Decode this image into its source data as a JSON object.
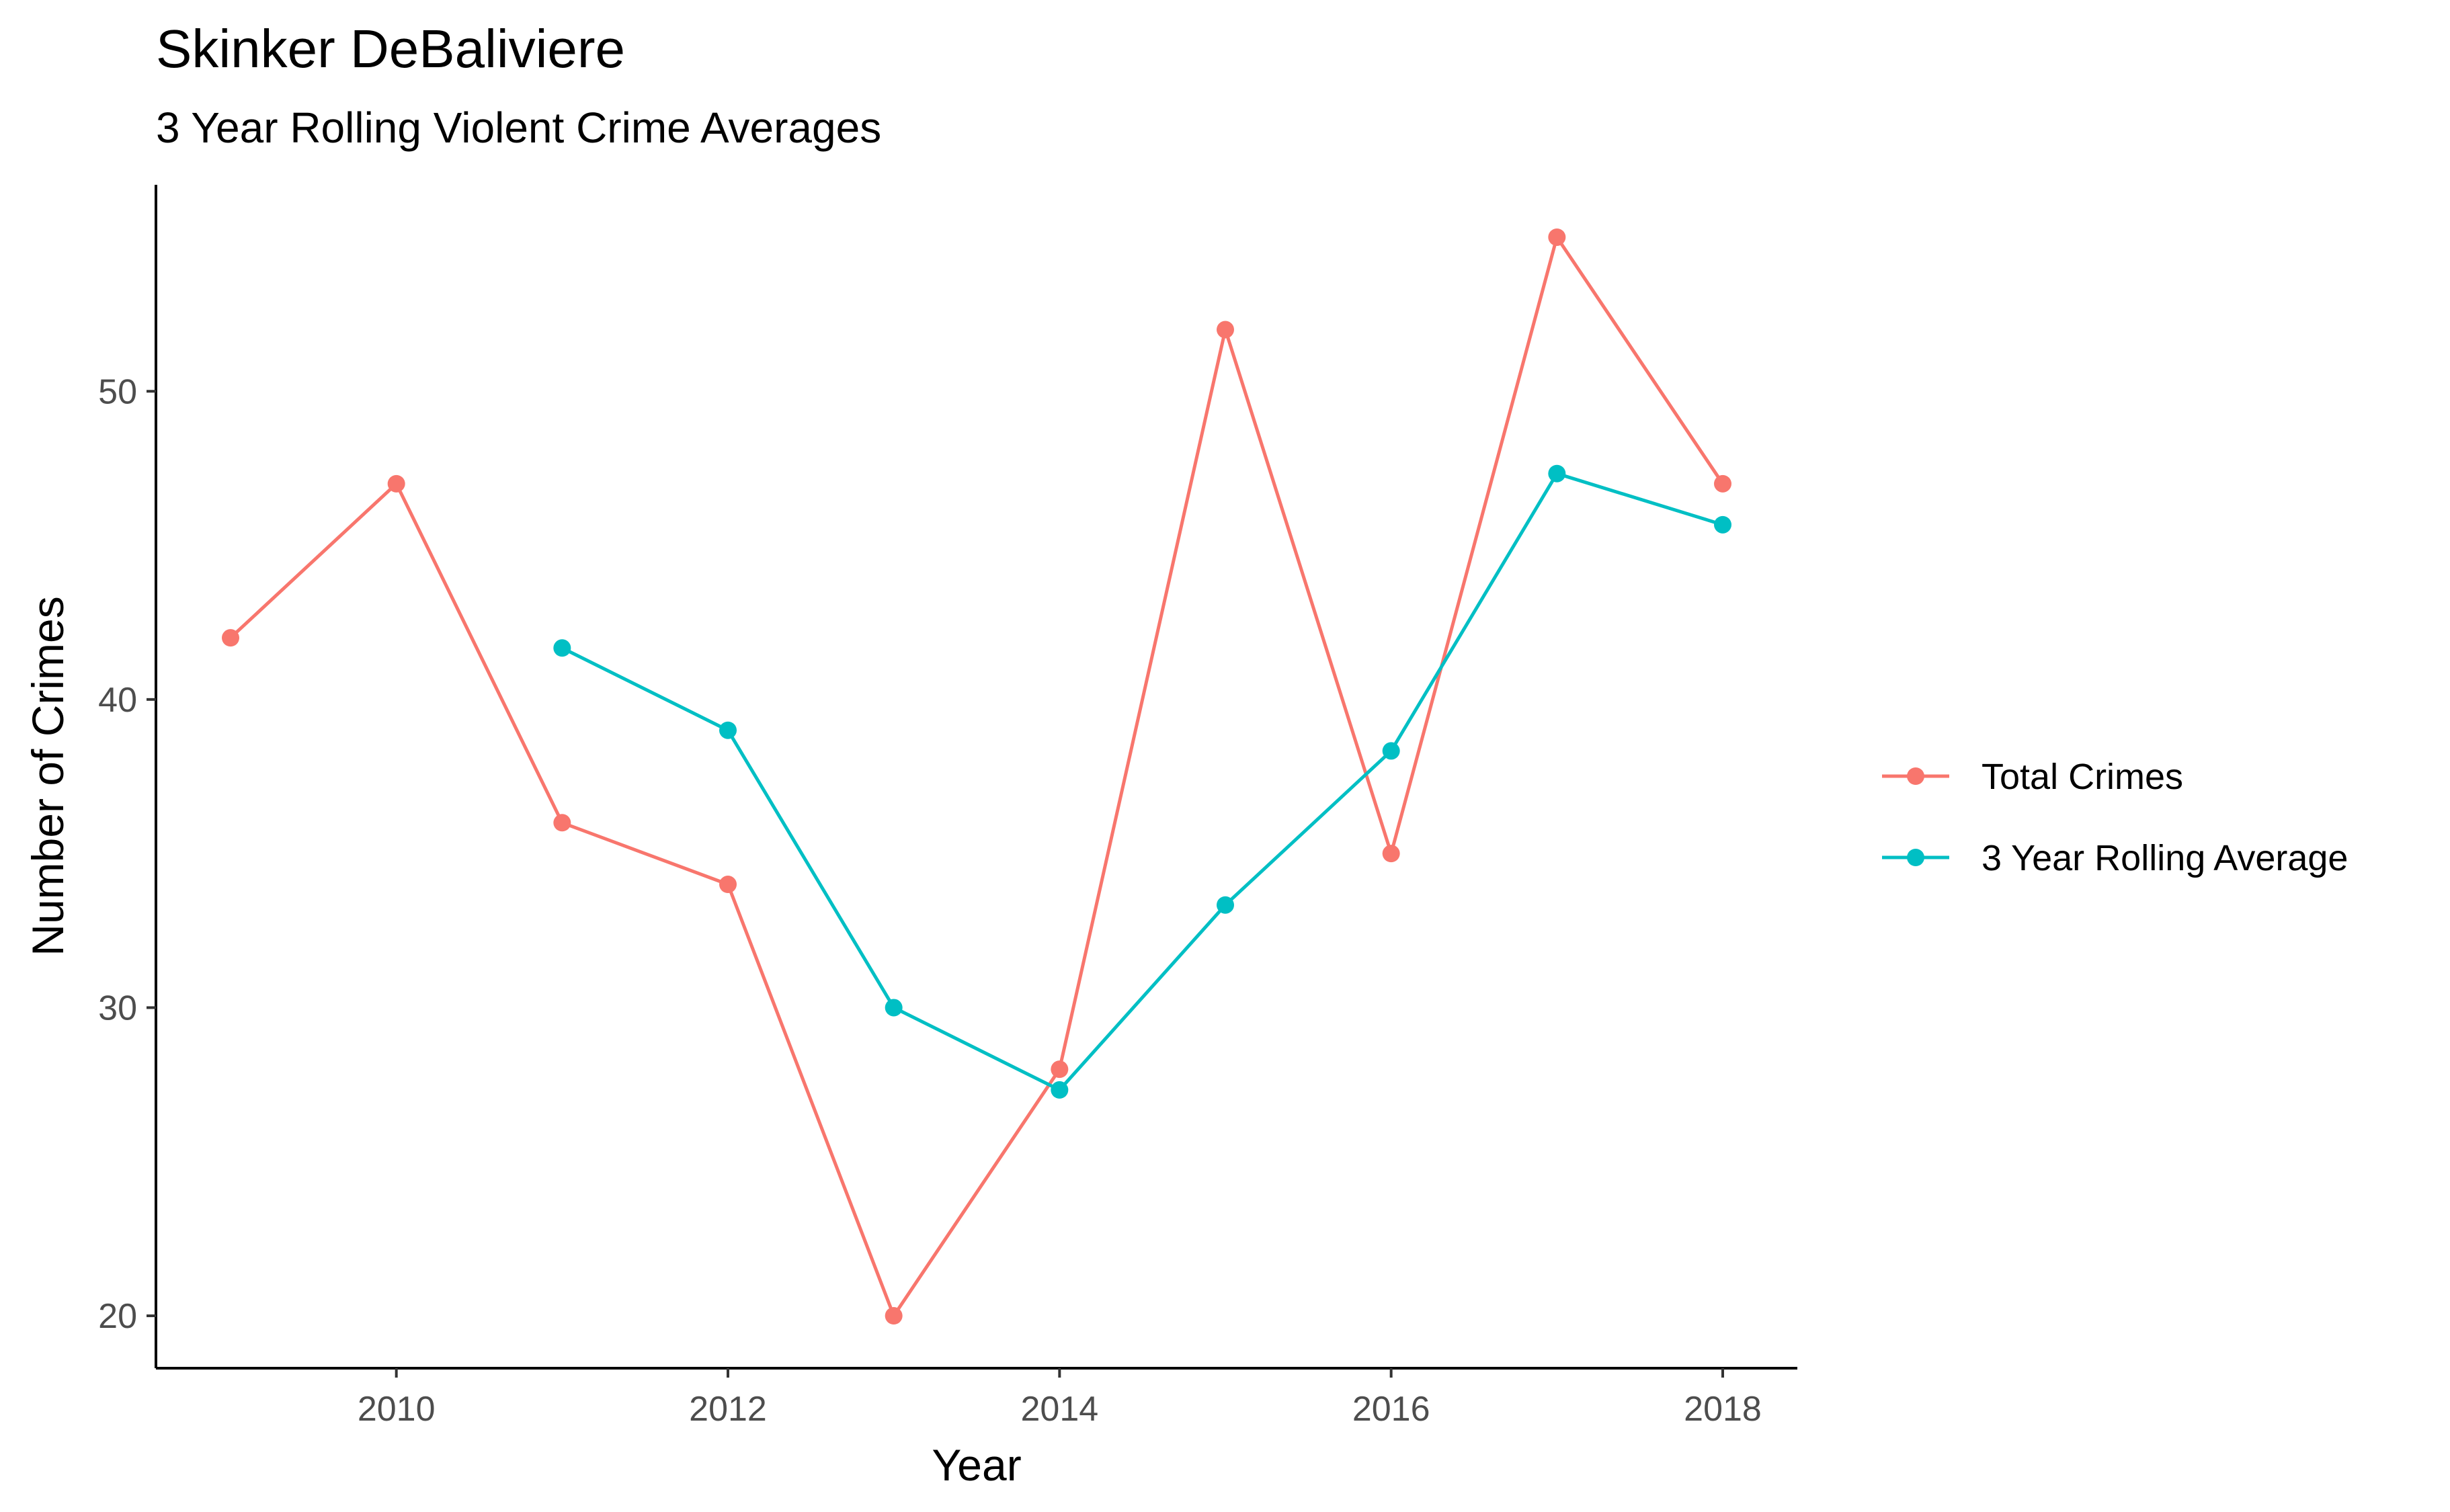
{
  "chart_data": {
    "type": "line",
    "title": "Skinker DeBaliviere",
    "subtitle": "3 Year Rolling Violent Crime Averages",
    "xlabel": "Year",
    "ylabel": "Number of Crimes",
    "xlim": [
      2008.55,
      2018.45
    ],
    "ylim": [
      18.3,
      56.7
    ],
    "x_ticks": [
      2010,
      2012,
      2014,
      2016,
      2018
    ],
    "y_ticks": [
      20,
      30,
      40,
      50
    ],
    "grid": false,
    "legend_position": "right",
    "series": [
      {
        "name": "Total Crimes",
        "color": "#F8766D",
        "x": [
          2009,
          2010,
          2011,
          2012,
          2013,
          2014,
          2015,
          2016,
          2017,
          2018
        ],
        "values": [
          42,
          47,
          36,
          34,
          20,
          28,
          52,
          35,
          55,
          47
        ]
      },
      {
        "name": "3 Year Rolling Average",
        "color": "#00BFC4",
        "x": [
          2011,
          2012,
          2013,
          2014,
          2015,
          2016,
          2017,
          2018
        ],
        "values": [
          41.67,
          39,
          30,
          27.33,
          33.33,
          38.33,
          47.33,
          45.67
        ]
      }
    ]
  }
}
